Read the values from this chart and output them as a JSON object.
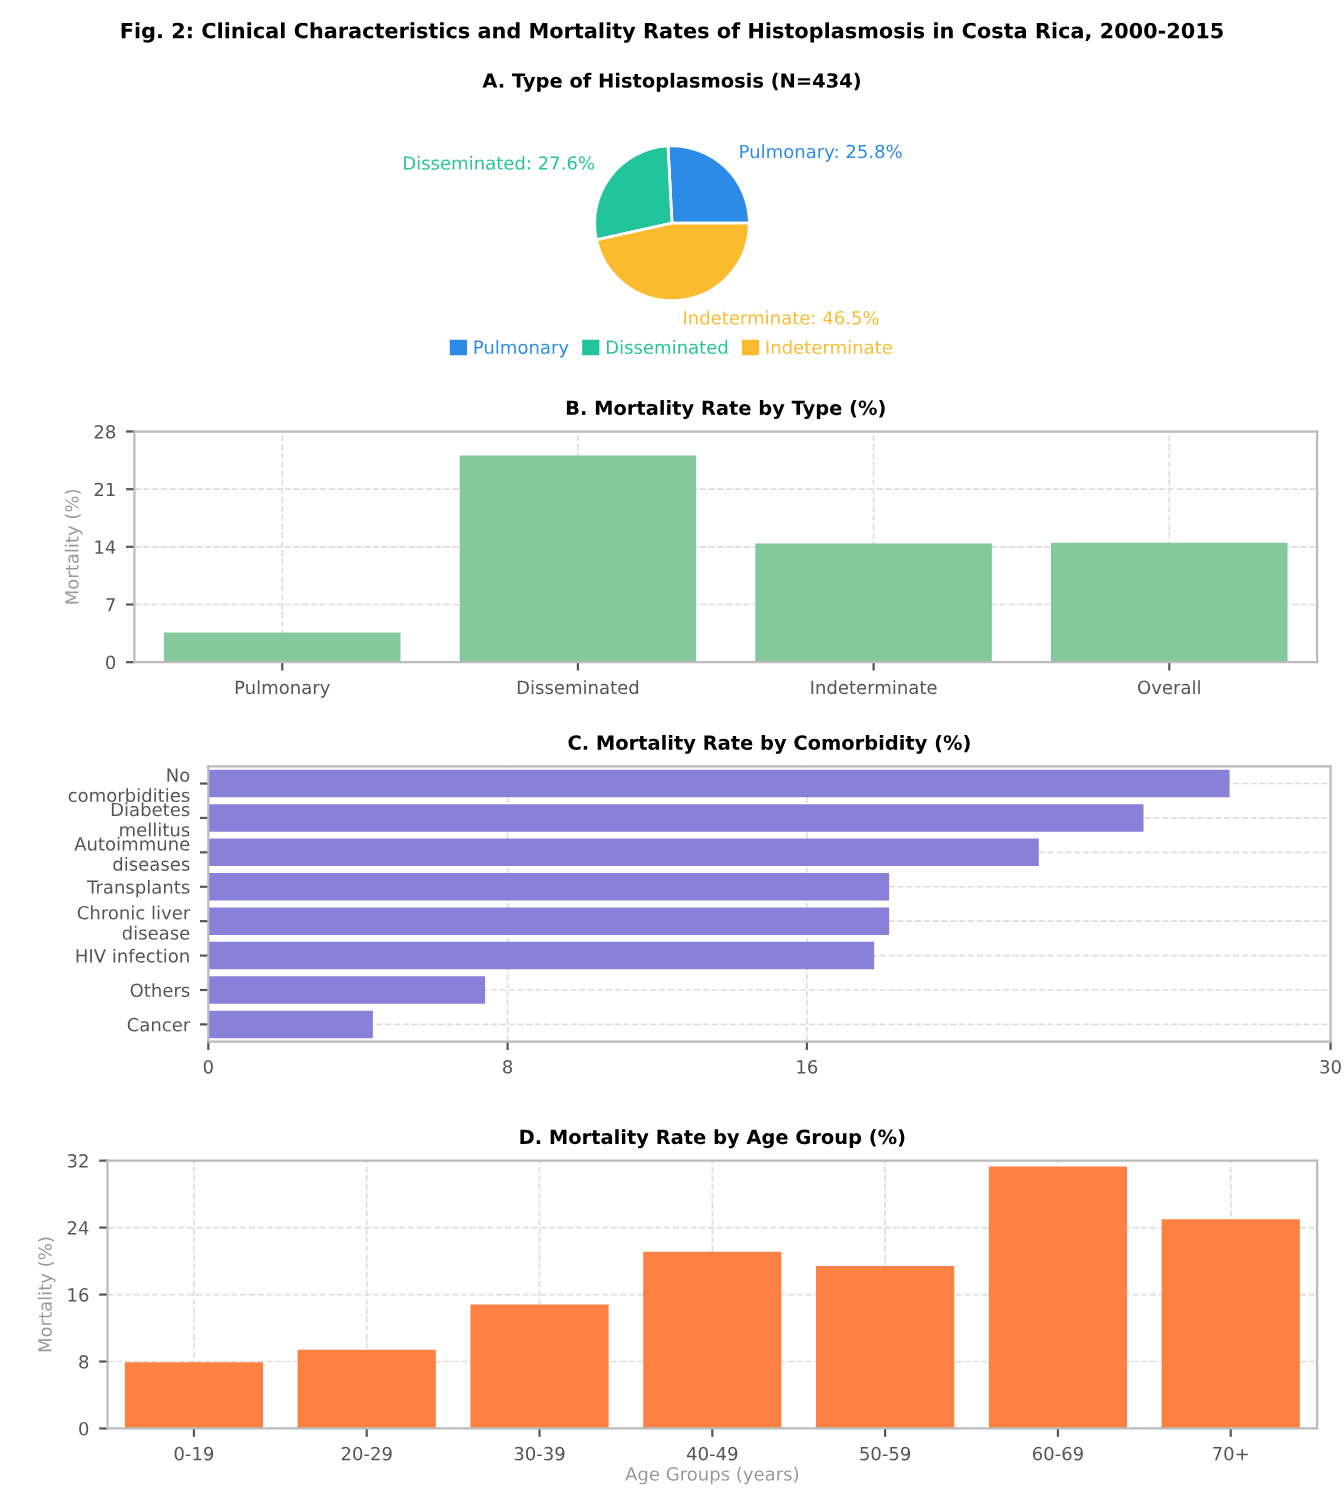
{
  "chart_data": [
    {
      "type": "pie",
      "annotations": [
        "Fig. 2: Clinical Characteristics and Mortality Rates of Histoplasmosis in Costa Rica, 2000-2015"
      ],
      "title": "A. Type of Histoplasmosis (N=434)",
      "categories": [
        "Pulmonary",
        "Disseminated",
        "Indeterminate"
      ],
      "values": [
        25.8,
        27.6,
        46.5
      ],
      "colors": [
        "#2c8be6",
        "#22c49c",
        "#fbbb2e"
      ],
      "value_labels": [
        "Pulmonary: 25.8%",
        "Disseminated: 27.6%",
        "Indeterminate: 46.5%"
      ],
      "legend": "bottom"
    },
    {
      "type": "bar",
      "title": "B. Mortality Rate by Type (%)",
      "ylabel": "Mortality (%)",
      "categories": [
        "Pulmonary",
        "Disseminated",
        "Indeterminate",
        "Overall"
      ],
      "values": [
        3.6,
        25.1,
        14.4,
        14.5
      ],
      "color": "#84c99c",
      "ylim": [
        0,
        28
      ],
      "yticks": [
        0,
        7,
        14,
        21,
        28
      ],
      "grid": true
    },
    {
      "type": "bar",
      "orientation": "horizontal",
      "title": "C. Mortality Rate by Comorbidity (%)",
      "categories": [
        "No comorbidities",
        "Diabetes mellitus",
        "Autoimmune diseases",
        "Transplants",
        "Chronic liver disease",
        "HIV infection",
        "Others",
        "Cancer"
      ],
      "values": [
        27.3,
        25.0,
        22.2,
        18.2,
        18.2,
        17.8,
        7.4,
        4.4
      ],
      "color": "#8781d9",
      "xlim": [
        0,
        30
      ],
      "xticks": [
        0,
        8,
        16,
        30
      ],
      "grid": true
    },
    {
      "type": "bar",
      "title": "D. Mortality Rate by Age Group (%)",
      "xlabel": "Age Groups (years)",
      "ylabel": "Mortality (%)",
      "categories": [
        "0-19",
        "20-29",
        "30-39",
        "40-49",
        "50-59",
        "60-69",
        "70+"
      ],
      "values": [
        7.9,
        9.4,
        14.8,
        21.1,
        19.4,
        31.3,
        25.0
      ],
      "color": "#fe8042",
      "ylim": [
        0,
        32
      ],
      "yticks": [
        0,
        8,
        16,
        24,
        32
      ],
      "grid": true
    }
  ]
}
